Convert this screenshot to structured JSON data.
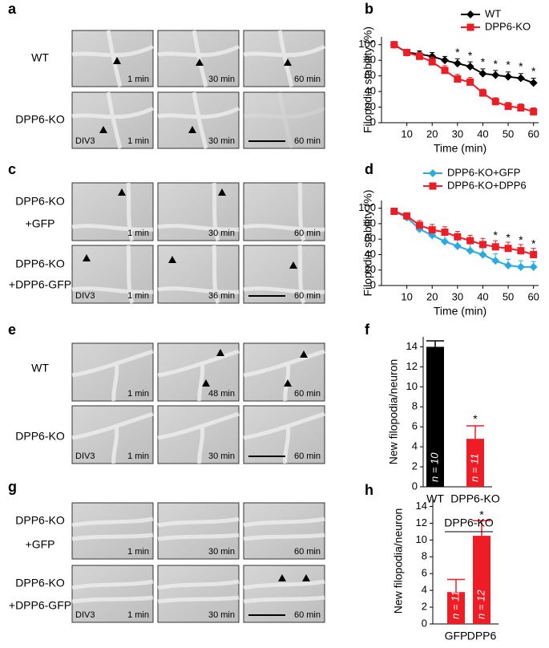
{
  "image_panels": [
    {
      "letter": "a",
      "rows": [
        {
          "label": [
            "WT"
          ],
          "times": [
            "1 min",
            "30 min",
            "60 min"
          ]
        },
        {
          "label": [
            "DPP6-KO"
          ],
          "times": [
            "1 min",
            "30 min",
            "60 min"
          ],
          "div": "DIV3"
        }
      ]
    },
    {
      "letter": "c",
      "rows": [
        {
          "label": [
            "DPP6-KO",
            "+GFP"
          ],
          "times": [
            "1 min",
            "30 min",
            "60 min"
          ]
        },
        {
          "label": [
            "DPP6-KO",
            "+DPP6-GFP"
          ],
          "times": [
            "1 min",
            "36 min",
            "60 min"
          ],
          "div": "DIV3"
        }
      ]
    },
    {
      "letter": "e",
      "rows": [
        {
          "label": [
            "WT"
          ],
          "times": [
            "1 min",
            "48 min",
            "60 min"
          ]
        },
        {
          "label": [
            "DPP6-KO"
          ],
          "times": [
            "1 min",
            "30 min",
            "60 min"
          ],
          "div": "DIV3"
        }
      ]
    },
    {
      "letter": "g",
      "rows": [
        {
          "label": [
            "DPP6-KO",
            "+GFP"
          ],
          "times": [
            "1 min",
            "30 min",
            "60 min"
          ]
        },
        {
          "label": [
            "DPP6-KO",
            "+DPP6-GFP"
          ],
          "times": [
            "1 min",
            "30 min",
            "60 min"
          ],
          "div": "DIV3"
        }
      ]
    }
  ],
  "chart_data": [
    {
      "type": "line",
      "panel_label": "b",
      "x_label": "Time (min)",
      "y_label": "Filopodia  stability (%)",
      "x": [
        5,
        10,
        15,
        20,
        25,
        30,
        35,
        40,
        45,
        50,
        55,
        60
      ],
      "xlim": [
        0,
        62
      ],
      "xticks": [
        10,
        20,
        30,
        40,
        50,
        60
      ],
      "ylim": [
        0,
        110
      ],
      "yticks": [
        0,
        20,
        40,
        60,
        80,
        100
      ],
      "legend": "upper right",
      "series": [
        {
          "name": "WT",
          "color": "#000000",
          "marker": "diamond",
          "values": [
            100,
            90,
            88,
            85,
            80,
            76,
            72,
            63,
            61,
            59,
            57,
            51
          ],
          "errors": [
            3,
            4,
            4,
            5,
            5,
            6,
            6,
            6,
            6,
            6,
            6,
            6
          ]
        },
        {
          "name": "DPP6-KO",
          "color": "#ee1c24",
          "marker": "square",
          "values": [
            100,
            90,
            85,
            78,
            67,
            56,
            52,
            38,
            27,
            21,
            19,
            14
          ],
          "errors": [
            3,
            4,
            5,
            6,
            6,
            6,
            6,
            5,
            5,
            5,
            5,
            5
          ]
        }
      ],
      "annotations": [
        {
          "text": "*",
          "x": 30,
          "y": 89
        },
        {
          "text": "*",
          "x": 35,
          "y": 85
        },
        {
          "text": "*",
          "x": 40,
          "y": 77
        },
        {
          "text": "*",
          "x": 45,
          "y": 74
        },
        {
          "text": "*",
          "x": 50,
          "y": 73
        },
        {
          "text": "*",
          "x": 55,
          "y": 71
        },
        {
          "text": "*",
          "x": 60,
          "y": 65
        }
      ]
    },
    {
      "type": "line",
      "panel_label": "d",
      "x_label": "Time (min)",
      "y_label": "Filopodia stability (%)",
      "x": [
        5,
        10,
        15,
        20,
        25,
        30,
        35,
        40,
        45,
        50,
        55,
        60
      ],
      "xlim": [
        0,
        62
      ],
      "xticks": [
        10,
        20,
        30,
        40,
        50,
        60
      ],
      "ylim": [
        0,
        110
      ],
      "yticks": [
        0,
        20,
        40,
        60,
        80,
        100
      ],
      "legend": "upper right",
      "series": [
        {
          "name": "DPP6-KO+GFP",
          "color": "#29abe2",
          "marker": "diamond",
          "values": [
            96,
            88,
            73,
            65,
            57,
            51,
            45,
            40,
            32,
            26,
            24,
            24
          ],
          "errors": [
            3,
            5,
            7,
            8,
            9,
            9,
            9,
            9,
            9,
            8,
            8,
            7
          ]
        },
        {
          "name": "DPP6-KO+DPP6",
          "color": "#ee1c24",
          "marker": "square",
          "values": [
            96,
            90,
            78,
            72,
            69,
            63,
            58,
            53,
            50,
            48,
            45,
            40
          ],
          "errors": [
            3,
            4,
            6,
            7,
            7,
            7,
            7,
            8,
            8,
            8,
            8,
            8
          ]
        }
      ],
      "annotations": [
        {
          "text": "*",
          "x": 45,
          "y": 64
        },
        {
          "text": "*",
          "x": 50,
          "y": 61
        },
        {
          "text": "*",
          "x": 55,
          "y": 58
        },
        {
          "text": "*",
          "x": 60,
          "y": 53
        }
      ]
    },
    {
      "type": "bar",
      "panel_label": "f",
      "y_label": "New filopodia/neuron",
      "categories": [
        "WT",
        "DPP6-KO"
      ],
      "values": [
        14.0,
        4.8
      ],
      "errors": [
        0.6,
        1.3
      ],
      "colors": [
        "#000000",
        "#ee1c24"
      ],
      "bar_labels": [
        "n = 10",
        "n = 11"
      ],
      "ylim": [
        0,
        15
      ],
      "yticks": [
        0,
        2,
        4,
        6,
        8,
        10,
        12,
        14
      ],
      "annotations": [
        {
          "text": "*",
          "category": "DPP6-KO",
          "y": 6.7
        }
      ]
    },
    {
      "type": "bar",
      "panel_label": "h",
      "y_label": "New filopodia/neuron",
      "group_label": "DPP6-KO",
      "categories": [
        "GFP",
        "DPP6"
      ],
      "values": [
        3.8,
        10.5
      ],
      "errors": [
        1.5,
        1.8
      ],
      "colors": [
        "#ee1c24",
        "#ee1c24"
      ],
      "bar_labels": [
        "n = 11",
        "n = 12"
      ],
      "ylim": [
        0,
        15
      ],
      "yticks": [
        0,
        2,
        4,
        6,
        8,
        10,
        12,
        14
      ],
      "annotations": [
        {
          "text": "*",
          "category": "DPP6",
          "y": 12.9
        }
      ]
    }
  ]
}
